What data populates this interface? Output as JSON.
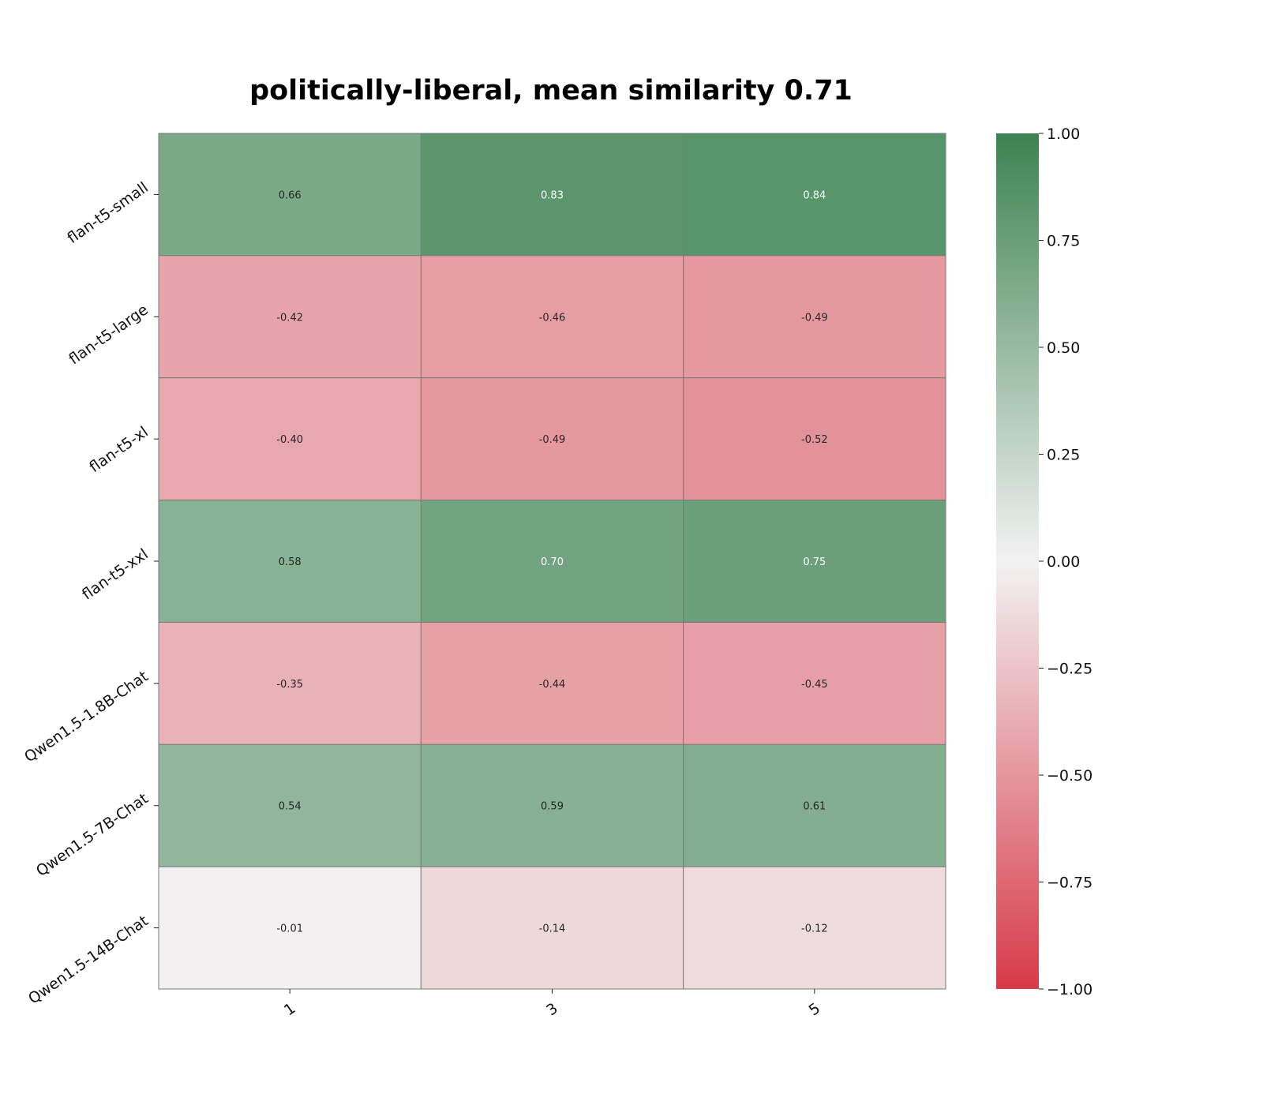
{
  "chart_data": {
    "type": "heatmap",
    "title": "politically-liberal, mean similarity 0.71",
    "x_categories": [
      "1",
      "3",
      "5"
    ],
    "y_categories": [
      "flan-t5-small",
      "flan-t5-large",
      "flan-t5-xl",
      "flan-t5-xxl",
      "Qwen1.5-1.8B-Chat",
      "Qwen1.5-7B-Chat",
      "Qwen1.5-14B-Chat"
    ],
    "values": [
      [
        0.66,
        0.83,
        0.84
      ],
      [
        -0.42,
        -0.46,
        -0.49
      ],
      [
        -0.4,
        -0.49,
        -0.52
      ],
      [
        0.58,
        0.7,
        0.75
      ],
      [
        -0.35,
        -0.44,
        -0.45
      ],
      [
        0.54,
        0.59,
        0.61
      ],
      [
        -0.01,
        -0.14,
        -0.12
      ]
    ],
    "value_labels": [
      [
        "0.66",
        "0.83",
        "0.84"
      ],
      [
        "-0.42",
        "-0.46",
        "-0.49"
      ],
      [
        "-0.40",
        "-0.49",
        "-0.52"
      ],
      [
        "0.58",
        "0.70",
        "0.75"
      ],
      [
        "-0.35",
        "-0.44",
        "-0.45"
      ],
      [
        "0.54",
        "0.59",
        "0.61"
      ],
      [
        "-0.01",
        "-0.14",
        "-0.12"
      ]
    ],
    "colorbar": {
      "range": [
        -1.0,
        1.0
      ],
      "ticks": [
        1.0,
        0.75,
        0.5,
        0.25,
        0.0,
        -0.25,
        -0.5,
        -0.75,
        -1.0
      ],
      "tick_labels": [
        "1.00",
        "0.75",
        "0.50",
        "0.25",
        "0.00",
        "−0.25",
        "−0.50",
        "−0.75",
        "−1.00"
      ],
      "color_low": "#d73a48",
      "color_mid": "#f2f2f2",
      "color_high": "#3c8350"
    },
    "grid": true,
    "legend": "colorbar-right"
  }
}
